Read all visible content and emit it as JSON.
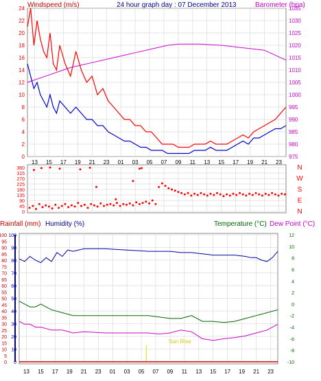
{
  "header": {
    "left_label": "Windspeed (m/s)",
    "title": "24 hour graph day : 07 December 2013",
    "right_label": "Barometer (hpa)"
  },
  "colors": {
    "gust": "#ff0000",
    "average": "#0000cc",
    "barometer": "#cc00cc",
    "direction": "#ff0000",
    "rain": "#cc0000",
    "humidity": "#000099",
    "temperature": "#006600",
    "dewpoint": "#cc00cc",
    "sunrise": "#dddd00",
    "grid": "#cccccc"
  },
  "time_ticks": [
    "13",
    "15",
    "17",
    "19",
    "21",
    "23",
    "01",
    "03",
    "05",
    "07",
    "09",
    "11",
    "13",
    "15",
    "17",
    "19",
    "21",
    "23"
  ],
  "chart_data": [
    {
      "type": "line",
      "name": "wind-and-pressure",
      "left_axis_label": "Windspeed (m/s)",
      "right_axis_label": "Barometer (hpa)",
      "left_ticks": [
        "0",
        "2",
        "4",
        "6",
        "8",
        "10",
        "12",
        "14",
        "16",
        "18",
        "20",
        "22",
        "24"
      ],
      "right_ticks": [
        "975",
        "980",
        "985",
        "990",
        "995",
        "1000",
        "1005",
        "1010",
        "1015",
        "1020",
        "1025",
        "1030",
        "1035"
      ],
      "left_range": [
        0,
        24
      ],
      "right_range": [
        975,
        1035
      ],
      "x_range": [
        0,
        24
      ],
      "gust": {
        "x": [
          0.0,
          0.3,
          0.6,
          0.9,
          1.2,
          1.5,
          1.8,
          2.1,
          2.4,
          2.7,
          3.0,
          3.5,
          4.0,
          4.5,
          5.0,
          5.5,
          6.0,
          6.5,
          7.0,
          7.5,
          8.0,
          8.5,
          9.0,
          9.5,
          10.0,
          10.5,
          11.0,
          11.5,
          12.0,
          12.5,
          13.0,
          13.5,
          14.0,
          14.5,
          15.0,
          15.5,
          16.0,
          16.5,
          17.0,
          17.5,
          18.0,
          18.5,
          19.0,
          19.5,
          20.0,
          20.5,
          21.0,
          21.5,
          22.0,
          22.5,
          23.0,
          23.5,
          24.0
        ],
        "values": [
          21,
          24,
          18,
          22,
          19,
          17,
          16,
          20,
          15,
          14,
          18,
          15,
          13,
          17,
          14,
          12,
          13,
          10,
          11,
          9,
          8,
          7,
          6,
          6,
          5,
          5,
          4,
          4,
          3,
          2,
          2,
          2,
          1.5,
          1.5,
          1.5,
          2,
          2,
          2,
          2.5,
          2,
          2,
          2,
          2.5,
          3,
          3.5,
          3,
          4,
          4.5,
          5,
          5.5,
          6,
          7,
          8
        ]
      },
      "average": {
        "x": [
          0.0,
          0.3,
          0.6,
          0.9,
          1.2,
          1.5,
          1.8,
          2.1,
          2.4,
          2.7,
          3.0,
          3.5,
          4.0,
          4.5,
          5.0,
          5.5,
          6.0,
          6.5,
          7.0,
          7.5,
          8.0,
          8.5,
          9.0,
          9.5,
          10.0,
          10.5,
          11.0,
          11.5,
          12.0,
          12.5,
          13.0,
          13.5,
          14.0,
          14.5,
          15.0,
          15.5,
          16.0,
          16.5,
          17.0,
          17.5,
          18.0,
          18.5,
          19.0,
          19.5,
          20.0,
          20.5,
          21.0,
          21.5,
          22.0,
          22.5,
          23.0,
          23.5,
          24.0
        ],
        "values": [
          15,
          13,
          11,
          12,
          10,
          9,
          8,
          10,
          8,
          7,
          9,
          8,
          7,
          8,
          7,
          6,
          6,
          5,
          5,
          4,
          3.5,
          3,
          2.5,
          2.5,
          2,
          1.5,
          1.5,
          1,
          1,
          1,
          0.5,
          0.5,
          0.5,
          0.5,
          0.5,
          1,
          1,
          1,
          1.5,
          1,
          1,
          1,
          1.5,
          2,
          2.5,
          2,
          3,
          3,
          3.5,
          4,
          4.5,
          4.5,
          5
        ]
      },
      "barometer": {
        "x": [
          0,
          2,
          4,
          6,
          8,
          10,
          12,
          13,
          14,
          16,
          18,
          20,
          22,
          23,
          24
        ],
        "values": [
          1005,
          1008,
          1011,
          1013,
          1015,
          1017,
          1019,
          1020,
          1020.5,
          1020.5,
          1020,
          1019,
          1018,
          1016,
          1014
        ]
      }
    },
    {
      "type": "scatter",
      "name": "wind-direction",
      "left_ticks": [
        "0",
        "45",
        "90",
        "135",
        "180",
        "225",
        "270",
        "315",
        "360"
      ],
      "compass_labels": [
        "N",
        "W",
        "S",
        "E",
        "N"
      ],
      "y_range": [
        0,
        360
      ],
      "x_range": [
        0,
        24
      ],
      "x": [
        0.2,
        0.5,
        0.8,
        1.1,
        1.4,
        1.7,
        2.0,
        2.3,
        2.6,
        2.9,
        3.2,
        3.5,
        3.8,
        4.1,
        4.4,
        4.7,
        5.0,
        5.3,
        5.6,
        5.9,
        6.2,
        6.5,
        6.8,
        7.1,
        7.4,
        7.7,
        8.0,
        8.3,
        8.6,
        8.9,
        9.2,
        9.5,
        9.8,
        10.1,
        10.4,
        10.7,
        11.0,
        11.3,
        11.6,
        11.9,
        12.2,
        12.5,
        12.8,
        13.1,
        13.4,
        13.7,
        14.0,
        14.3,
        14.6,
        14.9,
        15.2,
        15.5,
        15.8,
        16.1,
        16.4,
        16.7,
        17.0,
        17.3,
        17.6,
        17.9,
        18.2,
        18.5,
        18.8,
        19.1,
        19.4,
        19.7,
        20.0,
        20.3,
        20.6,
        20.9,
        21.2,
        21.5,
        21.8,
        22.1,
        22.4,
        22.7,
        23.0,
        23.3,
        23.6,
        23.9,
        1.3,
        2.1,
        3.0,
        4.9,
        5.8,
        0.6,
        6.4,
        10.4,
        10.6,
        8.2,
        9.8
      ],
      "values": [
        30,
        45,
        20,
        60,
        35,
        50,
        40,
        25,
        55,
        30,
        45,
        60,
        35,
        50,
        40,
        70,
        45,
        55,
        30,
        60,
        50,
        40,
        65,
        45,
        55,
        60,
        50,
        70,
        45,
        60,
        55,
        65,
        50,
        75,
        60,
        70,
        80,
        65,
        90,
        60,
        200,
        230,
        210,
        190,
        180,
        170,
        160,
        150,
        140,
        150,
        130,
        145,
        135,
        150,
        140,
        130,
        145,
        135,
        150,
        140,
        125,
        140,
        130,
        145,
        135,
        150,
        140,
        130,
        145,
        135,
        150,
        140,
        130,
        145,
        135,
        150,
        140,
        130,
        145,
        140,
        355,
        360,
        350,
        345,
        358,
        340,
        200,
        350,
        355,
        100,
        250
      ]
    },
    {
      "type": "line",
      "name": "rain-humidity-temperature",
      "left_axis_label": "Rainfall (mm)",
      "left_axis_label_2": "Humidity (%)",
      "right_axis_label": "Temperature (°C)",
      "right_axis_label_2": "Dew Point (°C)",
      "rain_ticks": [
        "0",
        "5",
        "10",
        "15",
        "20",
        "25",
        "30",
        "35",
        "40",
        "45",
        "50",
        "55",
        "60",
        "65",
        "70",
        "75",
        "80",
        "85",
        "90",
        "95",
        "100"
      ],
      "humidity_ticks": [
        "0",
        "10",
        "20",
        "30",
        "40",
        "50",
        "60",
        "70",
        "80",
        "90",
        "100"
      ],
      "temp_ticks": [
        "-10",
        "-8",
        "-6",
        "-4",
        "-2",
        "0",
        "2",
        "4",
        "6",
        "8",
        "10",
        "12"
      ],
      "humidity_range": [
        0,
        100
      ],
      "temp_range": [
        -10,
        12
      ],
      "x_range": [
        0,
        24
      ],
      "annotation": "Sun Rise",
      "sunrise_x": 11.8,
      "humidity": {
        "x": [
          0,
          0.5,
          1,
          1.5,
          2,
          2.5,
          3,
          3.5,
          4,
          4.5,
          5,
          6,
          8,
          10,
          12,
          14,
          15,
          16,
          17,
          18,
          19,
          20,
          21,
          21.5,
          22,
          22.5,
          23,
          23.5,
          24
        ],
        "values": [
          81,
          79,
          83,
          80,
          78,
          82,
          79,
          86,
          83,
          88,
          87,
          89,
          89,
          88,
          87,
          87,
          86,
          86,
          85,
          84,
          84,
          84,
          83,
          82,
          82,
          80,
          79,
          82,
          87
        ]
      },
      "temperature": {
        "x": [
          0,
          0.5,
          1,
          1.5,
          2,
          3,
          4,
          5,
          6,
          8,
          10,
          12,
          14,
          15,
          16,
          17,
          18,
          19,
          20,
          21,
          22,
          23,
          24
        ],
        "values": [
          0.5,
          0,
          -0.5,
          -0.5,
          0,
          -1,
          -1.5,
          -2,
          -2,
          -2,
          -2,
          -2,
          -2.5,
          -2.5,
          -2,
          -3,
          -3,
          -3.2,
          -3,
          -2.5,
          -2,
          -1.5,
          -1
        ]
      },
      "dewpoint": {
        "x": [
          0,
          0.5,
          1,
          1.5,
          2,
          3,
          4,
          5,
          6,
          8,
          10,
          12,
          13,
          14,
          15,
          16,
          17,
          18,
          19,
          20,
          21,
          22,
          23,
          24
        ],
        "values": [
          -3,
          -3.5,
          -3.5,
          -4,
          -4,
          -4.5,
          -4.5,
          -5,
          -4.8,
          -5,
          -5,
          -5,
          -5.2,
          -5,
          -4.5,
          -4.8,
          -6,
          -6.3,
          -6,
          -5.8,
          -5.5,
          -5,
          -4.5,
          -3.5
        ]
      },
      "rain": {
        "x": [
          0,
          24
        ],
        "values": [
          0,
          0
        ]
      }
    }
  ]
}
